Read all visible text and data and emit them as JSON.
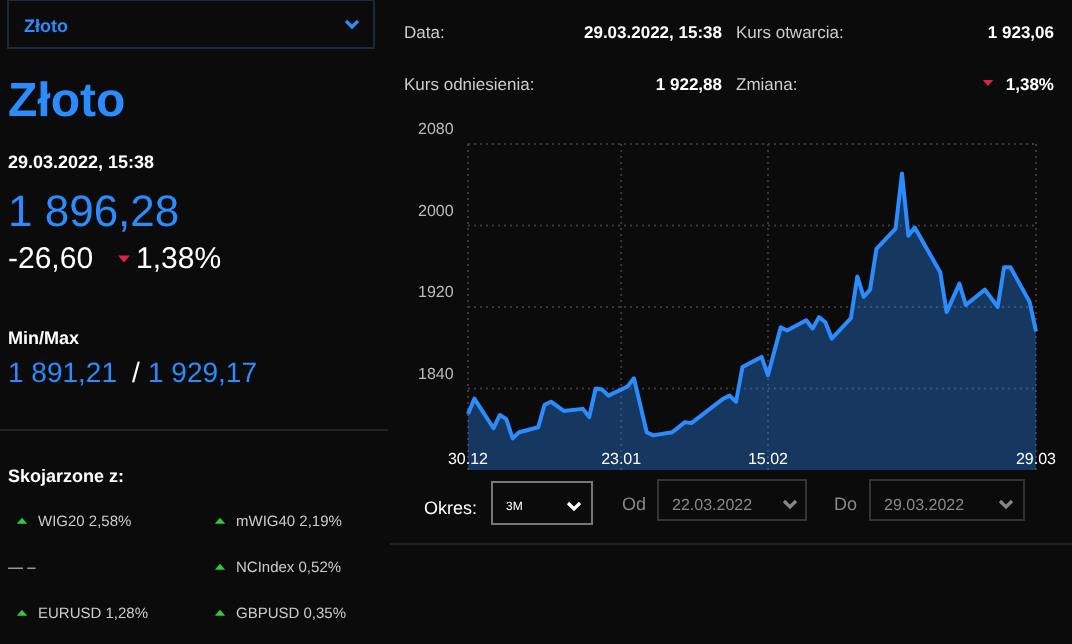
{
  "chart_data": [
    {
      "type": "other",
      "title": "Złoto",
      "annotations": [
        "Złoto",
        "29.03.2022, 15:38",
        "1 896,28",
        "-26,60",
        "1,38%",
        "Min/Max",
        "1 891,21",
        "/",
        "1 929,17",
        "Skojarzone z:",
        "WIG20 2,58%",
        "mWIG40 2,19%",
        "— –",
        "NCIndex 0,52%",
        "EURUSD 1,28%",
        "GBPUSD 0,35%",
        "Data:",
        "29.03.2022, 15:38",
        "Kurs otwarcia:",
        "1 923,06",
        "Kurs odniesienia:",
        "1 922,88",
        "Zmiana:",
        "1,38%",
        "Okres:",
        "3M",
        "Od",
        "22.03.2022",
        "Do",
        "29.03.2022"
      ]
    },
    {
      "type": "area",
      "x": [
        "2021-12-30",
        "2021-12-31",
        "2022-01-03",
        "2022-01-04",
        "2022-01-05",
        "2022-01-06",
        "2022-01-07",
        "2022-01-10",
        "2022-01-11",
        "2022-01-12",
        "2022-01-14",
        "2022-01-17",
        "2022-01-18",
        "2022-01-19",
        "2022-01-20",
        "2022-01-21",
        "2022-01-24",
        "2022-01-25",
        "2022-01-27",
        "2022-01-28",
        "2022-01-31",
        "2022-02-02",
        "2022-02-03",
        "2022-02-08",
        "2022-02-09",
        "2022-02-10",
        "2022-02-11",
        "2022-02-14",
        "2022-02-15",
        "2022-02-17",
        "2022-02-18",
        "2022-02-21",
        "2022-02-22",
        "2022-02-23",
        "2022-02-24",
        "2022-02-25",
        "2022-02-28",
        "2022-03-01",
        "2022-03-02",
        "2022-03-03",
        "2022-03-04",
        "2022-03-07",
        "2022-03-08",
        "2022-03-09",
        "2022-03-10",
        "2022-03-14",
        "2022-03-15",
        "2022-03-17",
        "2022-03-18",
        "2022-03-21",
        "2022-03-23",
        "2022-03-24",
        "2022-03-25",
        "2022-03-28",
        "2022-03-29"
      ],
      "series": [
        {
          "color": "#2a8cff",
          "values": [
            1815,
            1830,
            1801,
            1814,
            1810,
            1791,
            1797,
            1802,
            1824,
            1827,
            1818,
            1820,
            1812,
            1840,
            1839,
            1833,
            1842,
            1850,
            1797,
            1794,
            1797,
            1807,
            1806,
            1830,
            1833,
            1827,
            1861,
            1871,
            1853,
            1900,
            1897,
            1907,
            1899,
            1910,
            1905,
            1889,
            1909,
            1950,
            1930,
            1937,
            1977,
            1997,
            2051,
            1990,
            1998,
            1954,
            1915,
            1943,
            1922,
            1937,
            1920,
            1959,
            1959,
            1925,
            1896
          ]
        }
      ],
      "xlim": [
        "2021-12-30",
        "2022-03-29"
      ],
      "xticks": [
        {
          "value": "2021-12-30",
          "label": "30.12"
        },
        {
          "value": "2022-01-23",
          "label": "23.01"
        },
        {
          "value": "2022-02-15",
          "label": "15.02"
        },
        {
          "value": "2022-03-29",
          "label": "29.03"
        }
      ],
      "ylim": [
        1760,
        2080
      ],
      "yticks": [
        1840,
        1920,
        2000,
        2080
      ],
      "grid": true,
      "line_style": "solid"
    }
  ]
}
